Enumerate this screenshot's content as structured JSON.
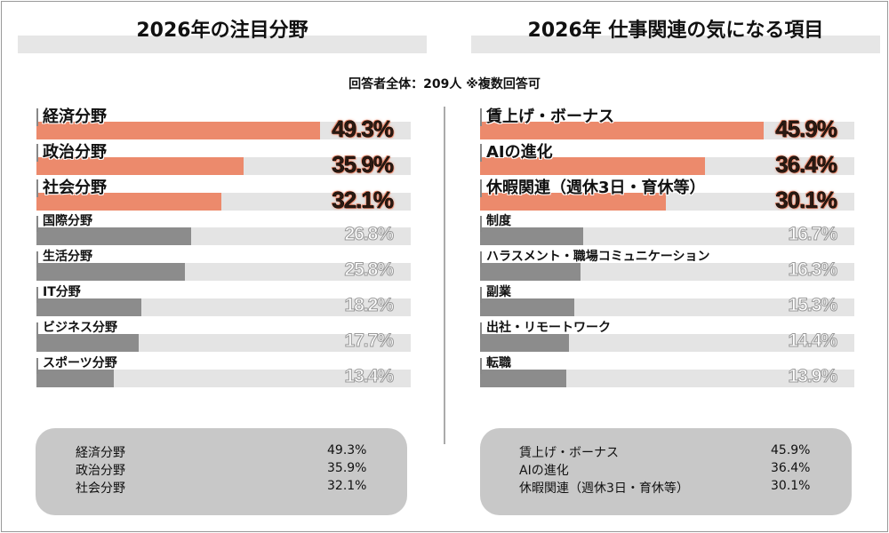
{
  "subtitle": "回答者全体：209人 ※複数回答可",
  "colors": {
    "highlight": "#ec8a6c",
    "normal": "#8c8c8c",
    "track": "#e4e4e4",
    "summary_bg": "#c8c8c8"
  },
  "chart_data": [
    {
      "type": "bar",
      "orientation": "horizontal",
      "title": "2026年の注目分野",
      "xlim": [
        0,
        65
      ],
      "unit": "%",
      "highlight_count": 3,
      "categories": [
        "経済分野",
        "政治分野",
        "社会分野",
        "国際分野",
        "生活分野",
        "IT分野",
        "ビジネス分野",
        "スポーツ分野"
      ],
      "values": [
        49.3,
        35.9,
        32.1,
        26.8,
        25.8,
        18.2,
        17.7,
        13.4
      ],
      "labels": [
        "49.3%",
        "35.9%",
        "32.1%",
        "26.8%",
        "25.8%",
        "18.2%",
        "17.7%",
        "13.4%"
      ],
      "summary": [
        {
          "name": "経済分野",
          "value": "49.3%"
        },
        {
          "name": "政治分野",
          "value": "35.9%"
        },
        {
          "name": "社会分野",
          "value": "32.1%"
        }
      ]
    },
    {
      "type": "bar",
      "orientation": "horizontal",
      "title": "2026年 仕事関連の気になる項目",
      "xlim": [
        0,
        60.5
      ],
      "unit": "%",
      "highlight_count": 3,
      "categories": [
        "賃上げ・ボーナス",
        "AIの進化",
        "休暇関連（週休3日・育休等）",
        "制度",
        "ハラスメント・職場コミュニケーション",
        "副業",
        "出社・リモートワーク",
        "転職"
      ],
      "values": [
        45.9,
        36.4,
        30.1,
        16.7,
        16.3,
        15.3,
        14.4,
        13.9
      ],
      "labels": [
        "45.9%",
        "36.4%",
        "30.1%",
        "16.7%",
        "16.3%",
        "15.3%",
        "14.4%",
        "13.9%"
      ],
      "summary": [
        {
          "name": "賃上げ・ボーナス",
          "value": "45.9%"
        },
        {
          "name": "AIの進化",
          "value": "36.4%"
        },
        {
          "name": "休暇関連（週休3日・育休等）",
          "value": "30.1%"
        }
      ]
    }
  ]
}
